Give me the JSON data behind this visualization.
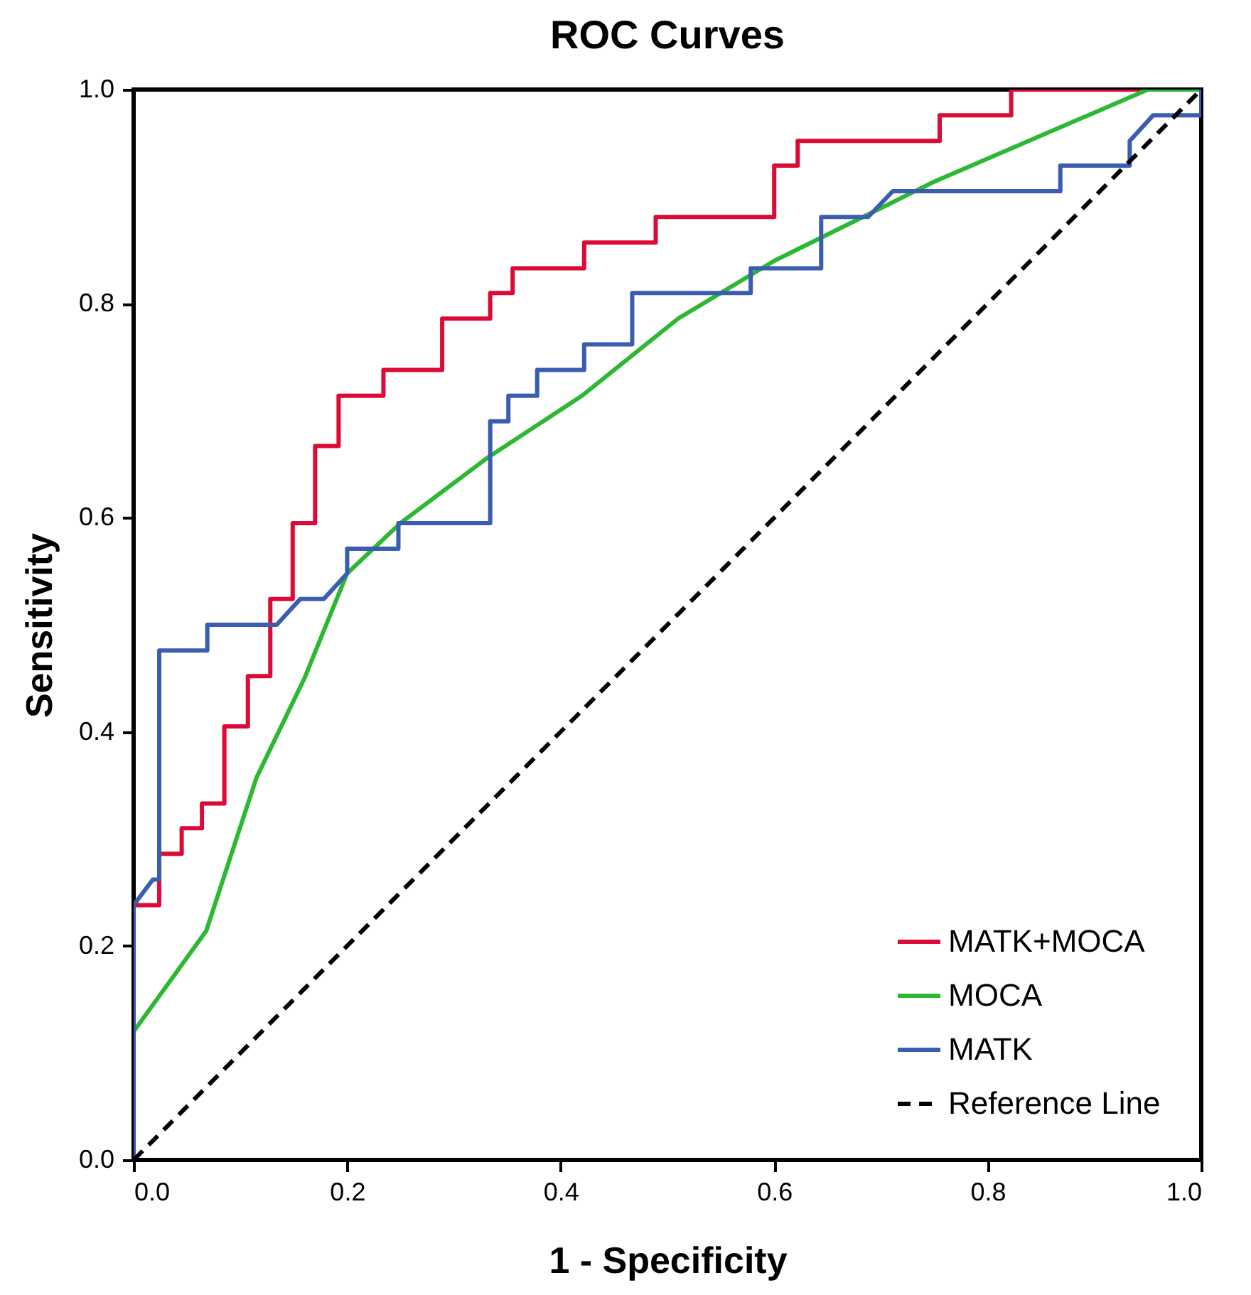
{
  "chart_data": {
    "type": "line",
    "title": "ROC Curves",
    "xlabel": "1 - Specificity",
    "ylabel": "Sensitivity",
    "xlim": [
      0,
      1
    ],
    "ylim": [
      0,
      1
    ],
    "xticks": [
      {
        "value": 0,
        "label": "0.0"
      },
      {
        "value": 0.2,
        "label": "0.2"
      },
      {
        "value": 0.4,
        "label": "0.4"
      },
      {
        "value": 0.6,
        "label": "0.6"
      },
      {
        "value": 0.8,
        "label": "0.8"
      },
      {
        "value": 1,
        "label": "1.0"
      }
    ],
    "yticks": [
      {
        "value": 0,
        "label": "0.0"
      },
      {
        "value": 0.2,
        "label": "0.2"
      },
      {
        "value": 0.4,
        "label": "0.4"
      },
      {
        "value": 0.6,
        "label": "0.6"
      },
      {
        "value": 0.8,
        "label": "0.8"
      },
      {
        "value": 1,
        "label": "1.0"
      }
    ],
    "grid": false,
    "legend": "bottom right",
    "marker": "none",
    "series": [
      {
        "name": "MATK+MOCA",
        "color": "#dc0a36",
        "line_style": "solid",
        "x": [
          0,
          0,
          0.024,
          0.024,
          0.045,
          0.045,
          0.064,
          0.064,
          0.085,
          0.085,
          0.107,
          0.107,
          0.128,
          0.128,
          0.149,
          0.149,
          0.17,
          0.17,
          0.192,
          0.192,
          0.234,
          0.234,
          0.289,
          0.289,
          0.334,
          0.334,
          0.355,
          0.355,
          0.422,
          0.422,
          0.489,
          0.489,
          0.6,
          0.6,
          0.622,
          0.622,
          0.755,
          0.755,
          0.822,
          0.822,
          1
        ],
        "values": [
          0,
          0.238,
          0.238,
          0.286,
          0.286,
          0.31,
          0.31,
          0.333,
          0.333,
          0.405,
          0.405,
          0.452,
          0.452,
          0.524,
          0.524,
          0.595,
          0.595,
          0.667,
          0.667,
          0.714,
          0.714,
          0.738,
          0.738,
          0.786,
          0.786,
          0.81,
          0.81,
          0.833,
          0.833,
          0.857,
          0.857,
          0.881,
          0.881,
          0.929,
          0.929,
          0.952,
          0.952,
          0.976,
          0.976,
          1,
          1
        ]
      },
      {
        "name": "MOCA",
        "color": "#2db834",
        "line_style": "solid",
        "x": [
          0,
          0.068,
          0.115,
          0.16,
          0.2,
          0.25,
          0.33,
          0.42,
          0.51,
          0.6,
          0.75,
          0.95,
          1
        ],
        "values": [
          0.12,
          0.214,
          0.357,
          0.45,
          0.548,
          0.595,
          0.655,
          0.714,
          0.786,
          0.84,
          0.914,
          1,
          1
        ]
      },
      {
        "name": "MATK",
        "color": "#3a5db0",
        "line_style": "solid",
        "x": [
          0,
          0,
          0.018,
          0.024,
          0.024,
          0.069,
          0.069,
          0.134,
          0.156,
          0.178,
          0.2,
          0.2,
          0.248,
          0.248,
          0.334,
          0.334,
          0.351,
          0.351,
          0.378,
          0.378,
          0.422,
          0.422,
          0.467,
          0.467,
          0.578,
          0.578,
          0.644,
          0.644,
          0.688,
          0.711,
          0.868,
          0.868,
          0.933,
          0.933,
          0.955,
          1,
          1
        ],
        "values": [
          0,
          0.238,
          0.262,
          0.262,
          0.476,
          0.476,
          0.5,
          0.5,
          0.524,
          0.524,
          0.548,
          0.571,
          0.571,
          0.595,
          0.595,
          0.69,
          0.69,
          0.714,
          0.714,
          0.738,
          0.738,
          0.762,
          0.762,
          0.81,
          0.81,
          0.833,
          0.833,
          0.881,
          0.881,
          0.905,
          0.905,
          0.929,
          0.929,
          0.952,
          0.976,
          0.976,
          1
        ]
      },
      {
        "name": "Reference Line",
        "color": "#000000",
        "line_style": "dashed",
        "x": [
          0,
          1
        ],
        "values": [
          0,
          1
        ]
      }
    ]
  }
}
